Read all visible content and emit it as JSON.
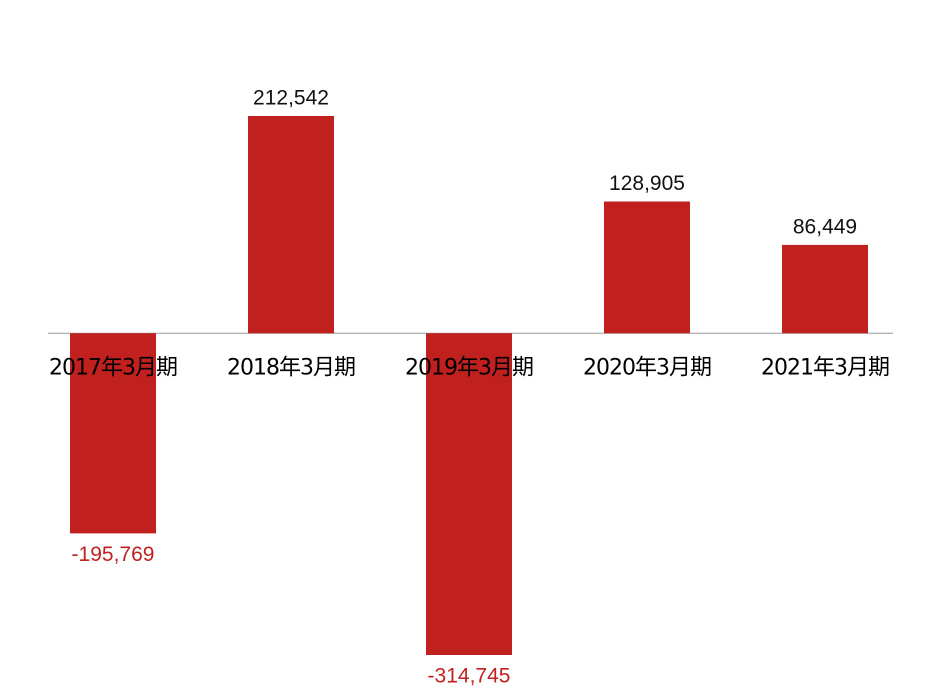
{
  "chart_data": {
    "type": "bar",
    "categories": [
      "2017年3月期",
      "2018年3月期",
      "2019年3月期",
      "2020年3月期",
      "2021年3月期"
    ],
    "values": [
      -195769,
      212542,
      -314745,
      128905,
      86449
    ],
    "value_labels": [
      "-195,769",
      "212,542",
      "-314,745",
      "128,905",
      "86,449"
    ],
    "color": "#c0211f"
  }
}
